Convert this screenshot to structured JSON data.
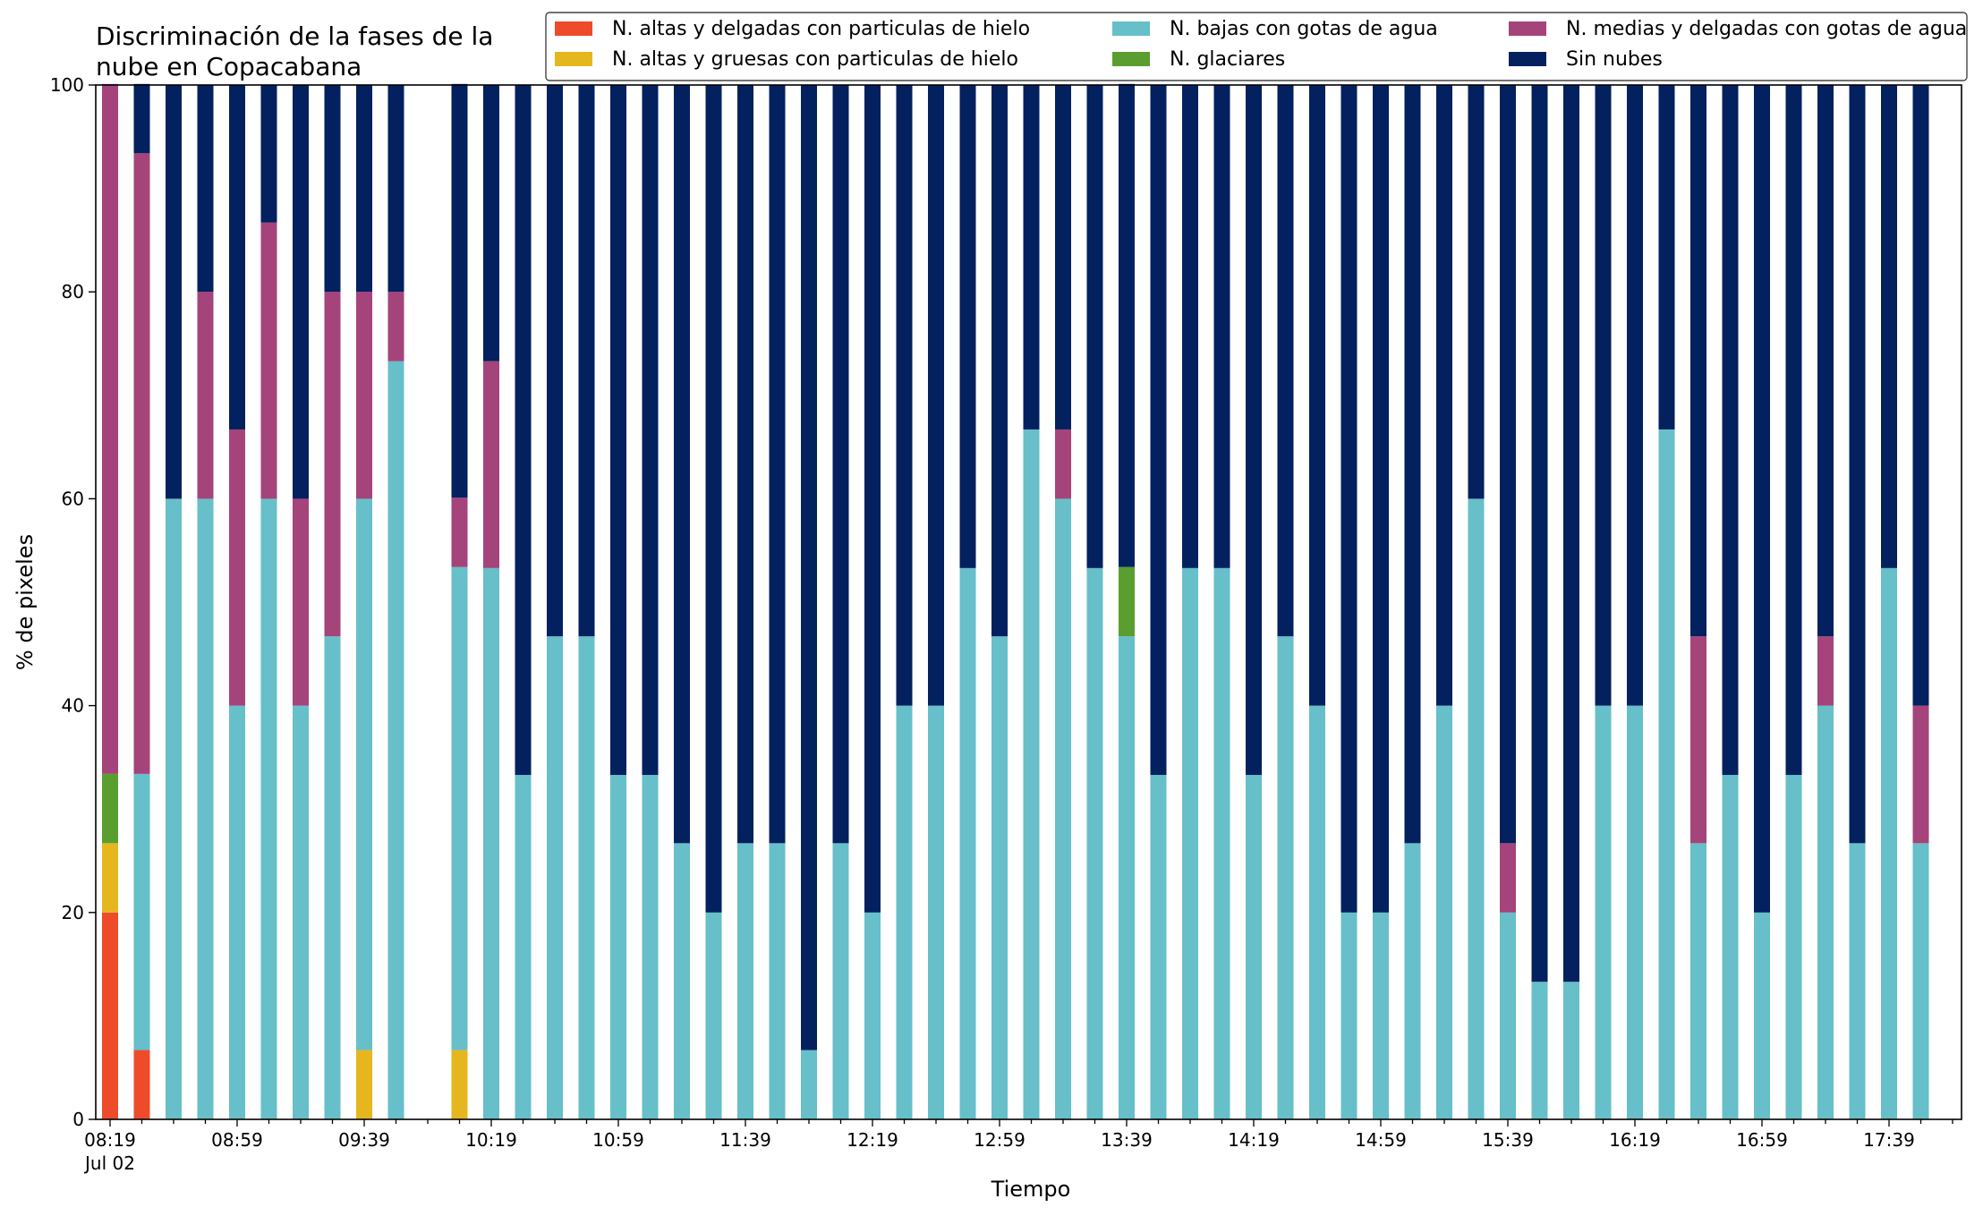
{
  "chart_data": {
    "type": "bar",
    "stacked": true,
    "title_lines": [
      "Discriminación de la fases de la",
      "nube en Copacabana"
    ],
    "xlabel": "Tiempo",
    "ylabel": "% de pixeles",
    "ylim": [
      0,
      100
    ],
    "yticks": [
      0,
      20,
      40,
      60,
      80,
      100
    ],
    "x_start": "08:19",
    "x_step_minutes": 10,
    "x_count": 59,
    "date_label": "Jul 02",
    "xtick_labels": [
      {
        "index": 0,
        "label": "08:19"
      },
      {
        "index": 4,
        "label": "08:59"
      },
      {
        "index": 8,
        "label": "09:39"
      },
      {
        "index": 12,
        "label": "10:19"
      },
      {
        "index": 16,
        "label": "10:59"
      },
      {
        "index": 20,
        "label": "11:39"
      },
      {
        "index": 24,
        "label": "12:19"
      },
      {
        "index": 28,
        "label": "12:59"
      },
      {
        "index": 32,
        "label": "13:39"
      },
      {
        "index": 36,
        "label": "14:19"
      },
      {
        "index": 40,
        "label": "14:59"
      },
      {
        "index": 44,
        "label": "15:39"
      },
      {
        "index": 48,
        "label": "16:19"
      },
      {
        "index": 52,
        "label": "16:59"
      },
      {
        "index": 56,
        "label": "17:39"
      }
    ],
    "legend_position": "top-right",
    "series": [
      {
        "name": "N. altas y delgadas con particulas de hielo",
        "color": "#EE4B2B",
        "values": [
          20,
          6.7,
          0,
          0,
          0,
          0,
          0,
          0,
          0,
          0,
          0,
          0,
          0,
          0,
          0,
          0,
          0,
          0,
          0,
          0,
          0,
          0,
          0,
          0,
          0,
          0,
          0,
          0,
          0,
          0,
          0,
          0,
          0,
          0,
          0,
          0,
          0,
          0,
          0,
          0,
          0,
          0,
          0,
          0,
          0,
          0,
          0,
          0,
          0,
          0,
          0,
          0,
          0,
          0,
          0,
          0,
          0,
          0,
          0
        ]
      },
      {
        "name": "N. altas y gruesas con particulas de hielo",
        "color": "#E6B61E",
        "values": [
          6.7,
          0,
          0,
          0,
          0,
          0,
          0,
          0,
          6.7,
          0,
          0,
          6.7,
          0,
          0,
          0,
          0,
          0,
          0,
          0,
          0,
          0,
          0,
          0,
          0,
          0,
          0,
          0,
          0,
          0,
          0,
          0,
          0,
          0,
          0,
          0,
          0,
          0,
          0,
          0,
          0,
          0,
          0,
          0,
          0,
          0,
          0,
          0,
          0,
          0,
          0,
          0,
          0,
          0,
          0,
          0,
          0,
          0,
          0,
          0
        ]
      },
      {
        "name": "N. bajas con gotas de agua",
        "color": "#66BFC9",
        "values": [
          0,
          26.7,
          60,
          60,
          40,
          60,
          40,
          46.7,
          53.3,
          73.3,
          null,
          46.7,
          53.3,
          33.3,
          46.7,
          46.7,
          33.3,
          33.3,
          26.7,
          20,
          26.7,
          26.7,
          6.7,
          26.7,
          20,
          40,
          40,
          53.3,
          46.7,
          66.7,
          60,
          53.3,
          46.7,
          33.3,
          53.3,
          53.3,
          33.3,
          46.7,
          40,
          20,
          20,
          26.7,
          40,
          60,
          20,
          13.3,
          13.3,
          40,
          40,
          66.7,
          26.7,
          33.3,
          20,
          33.3,
          40,
          26.7,
          53.3,
          26.7,
          0
        ]
      },
      {
        "name": "N. glaciares",
        "color": "#5A9E2F",
        "values": [
          6.7,
          0,
          0,
          0,
          0,
          0,
          0,
          0,
          0,
          0,
          null,
          0,
          0,
          0,
          0,
          0,
          0,
          0,
          0,
          0,
          0,
          0,
          0,
          0,
          0,
          0,
          0,
          0,
          0,
          0,
          0,
          0,
          6.7,
          0,
          0,
          0,
          0,
          0,
          0,
          0,
          0,
          0,
          0,
          0,
          0,
          0,
          0,
          0,
          0,
          0,
          0,
          0,
          0,
          0,
          0,
          0,
          0,
          0,
          0
        ]
      },
      {
        "name": "N. medias y delgadas con gotas de agua",
        "color": "#A4447A",
        "values": [
          66.7,
          60,
          0,
          20,
          26.7,
          26.7,
          20,
          33.3,
          20,
          6.7,
          null,
          6.7,
          20,
          0,
          0,
          0,
          0,
          0,
          0,
          0,
          0,
          0,
          0,
          0,
          0,
          0,
          0,
          0,
          0,
          0,
          6.7,
          0,
          0,
          0,
          0,
          0,
          0,
          0,
          0,
          0,
          0,
          0,
          0,
          0,
          6.7,
          0,
          0,
          0,
          0,
          0,
          20,
          0,
          0,
          0,
          6.7,
          0,
          0,
          13.3,
          0
        ]
      },
      {
        "name": "Sin nubes",
        "color": "#03205F",
        "values": [
          0,
          6.7,
          40,
          20,
          33.3,
          13.3,
          40,
          20,
          20,
          20,
          null,
          40,
          26.7,
          66.7,
          53.3,
          53.3,
          66.7,
          66.7,
          73.3,
          80,
          73.3,
          73.3,
          93.3,
          73.3,
          80,
          60,
          60,
          46.7,
          53.3,
          33.3,
          33.3,
          46.7,
          46.7,
          66.7,
          46.7,
          46.7,
          66.7,
          53.3,
          60,
          80,
          80,
          73.3,
          60,
          40,
          73.3,
          86.7,
          86.7,
          60,
          60,
          33.3,
          53.3,
          66.7,
          80,
          66.7,
          53.3,
          73.3,
          46.7,
          60,
          0
        ]
      }
    ]
  }
}
